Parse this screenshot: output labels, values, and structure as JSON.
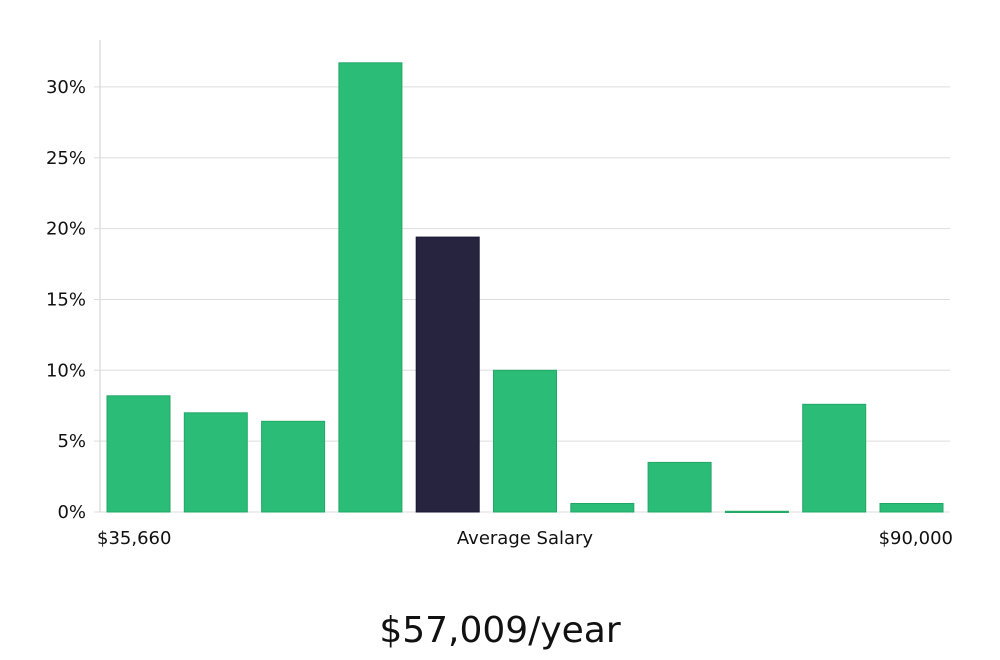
{
  "chart_data": {
    "type": "bar",
    "title": "",
    "xlabel": "Average Salary",
    "ylabel": "",
    "x_range_labels": {
      "min": "$35,660",
      "max": "$90,000"
    },
    "ylim": [
      0,
      33
    ],
    "yticks": [
      0,
      5,
      10,
      15,
      20,
      25,
      30
    ],
    "ytick_labels": [
      "0%",
      "5%",
      "10%",
      "15%",
      "20%",
      "25%",
      "30%"
    ],
    "grid": true,
    "legend": "none",
    "values": [
      8.2,
      7.0,
      6.4,
      31.7,
      19.4,
      10.0,
      0.6,
      3.5,
      0.05,
      7.6,
      0.6
    ],
    "highlight_index": 4,
    "colors": {
      "bar": "#2bbd77",
      "highlight": "#27243f",
      "grid": "#dddddd",
      "axis": "#cccccc"
    }
  },
  "headline": "$57,009/year"
}
